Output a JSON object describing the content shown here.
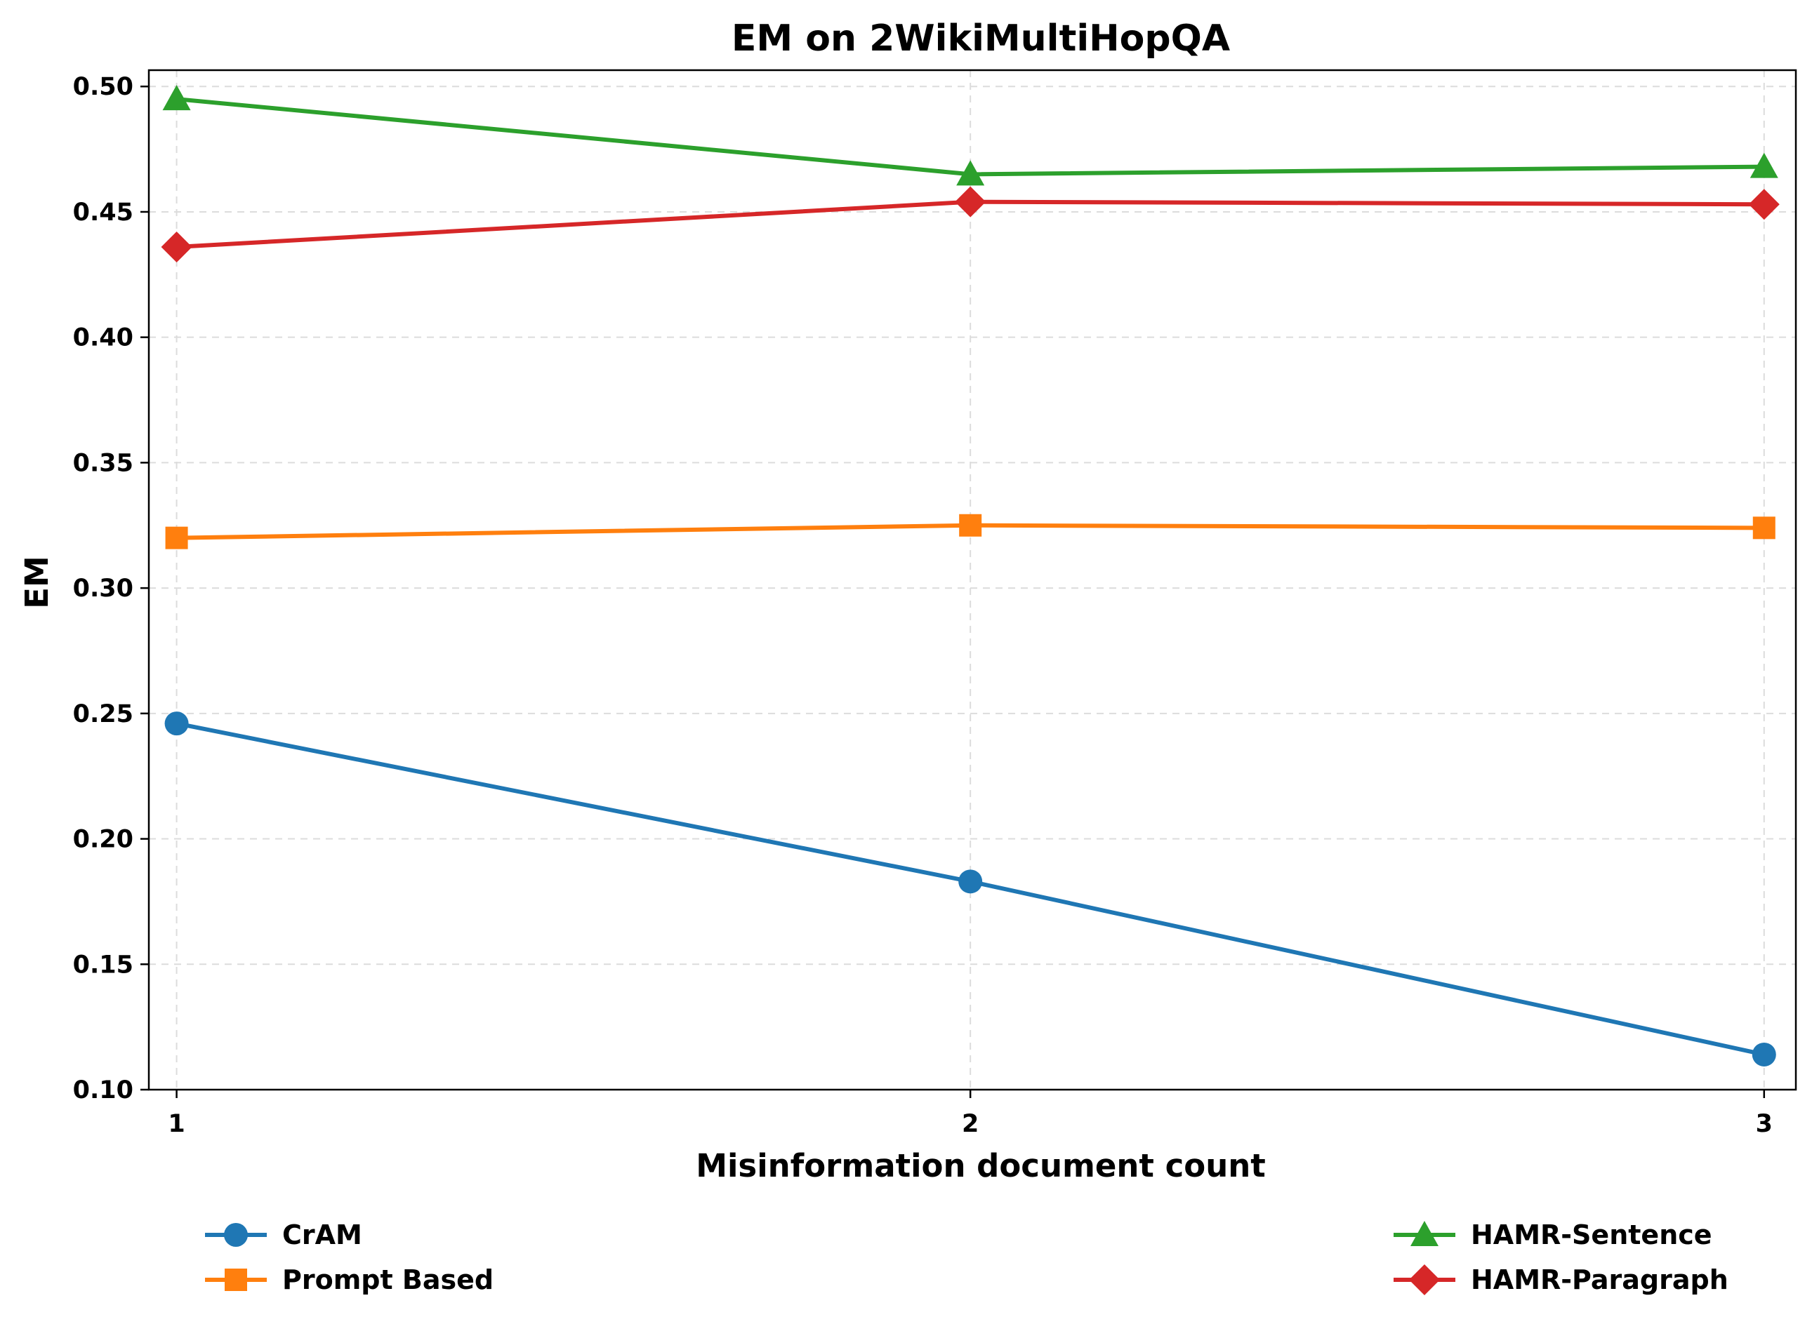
{
  "chart_data": {
    "type": "line",
    "title": "EM on 2WikiMultiHopQA",
    "xlabel": "Misinformation document count",
    "ylabel": "EM",
    "x": [
      1,
      2,
      3
    ],
    "x_tick_labels": [
      "1",
      "2",
      "3"
    ],
    "ylim": [
      0.1,
      0.5
    ],
    "y_ticks": [
      0.1,
      0.15,
      0.2,
      0.25,
      0.3,
      0.35,
      0.4,
      0.45,
      0.5
    ],
    "y_tick_labels": [
      "0.10",
      "0.15",
      "0.20",
      "0.25",
      "0.30",
      "0.35",
      "0.40",
      "0.45",
      "0.50"
    ],
    "grid": true,
    "legend_placement": "below",
    "series": [
      {
        "name": "CrAM",
        "values": [
          0.246,
          0.183,
          0.114
        ],
        "color": "#1f77b4",
        "marker": "circle"
      },
      {
        "name": "Prompt Based",
        "values": [
          0.32,
          0.325,
          0.324
        ],
        "color": "#ff7f0e",
        "marker": "square"
      },
      {
        "name": "HAMR-Sentence",
        "values": [
          0.495,
          0.465,
          0.468
        ],
        "color": "#2ca02c",
        "marker": "triangle"
      },
      {
        "name": "HAMR-Paragraph",
        "values": [
          0.436,
          0.454,
          0.453
        ],
        "color": "#d62728",
        "marker": "diamond"
      }
    ]
  }
}
